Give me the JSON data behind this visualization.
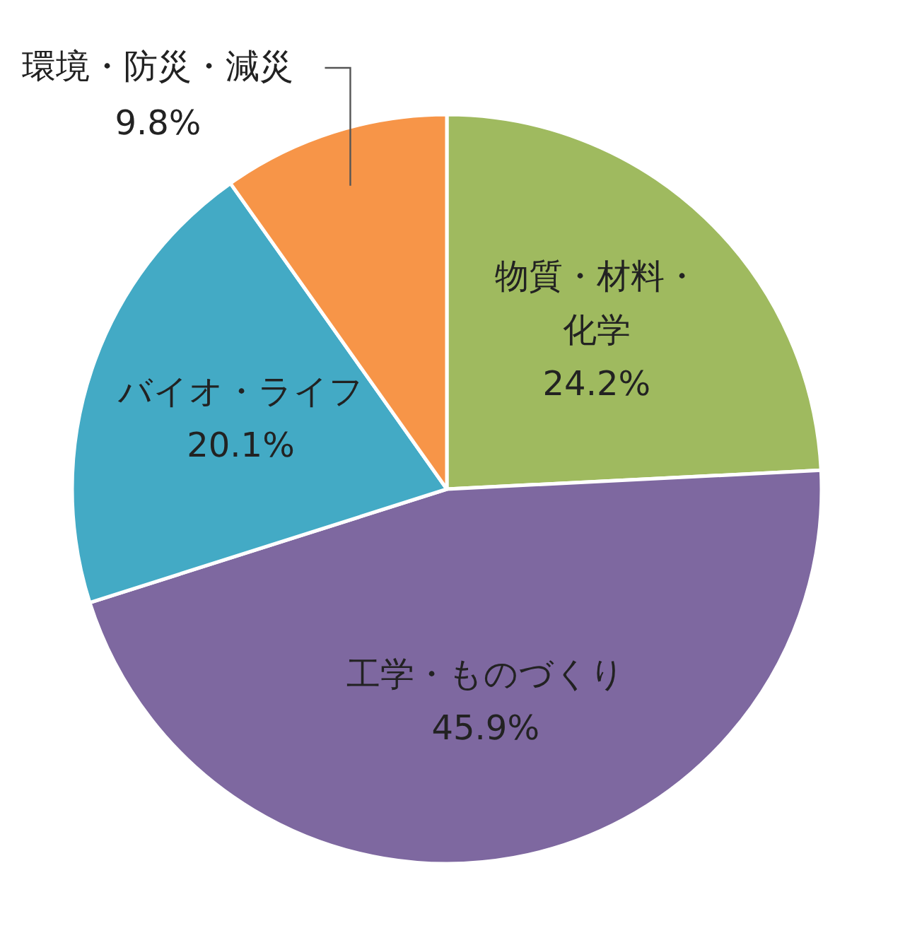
{
  "chart_data": {
    "type": "pie",
    "categories": [
      "物質・材料・化学",
      "工学・ものづくり",
      "バイオ・ライフ",
      "環境・防災・減災"
    ],
    "values": [
      24.2,
      45.9,
      20.1,
      9.8
    ],
    "colors": [
      "#9fba5f",
      "#7e68a0",
      "#43aac5",
      "#f79548"
    ],
    "value_labels": [
      "24.2%",
      "45.9%",
      "20.1%",
      "9.8%"
    ]
  }
}
